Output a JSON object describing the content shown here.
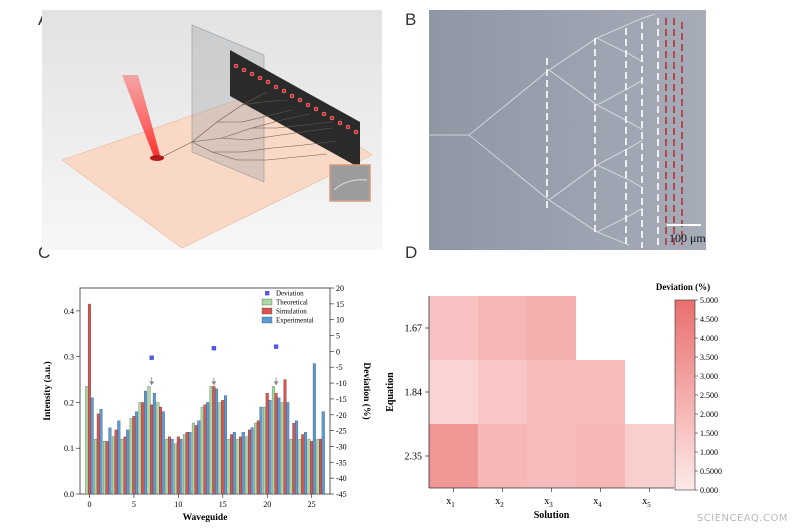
{
  "panels": {
    "a": "A",
    "b": "B",
    "c": "C",
    "d": "D"
  },
  "scale_bar": "100 μm",
  "watermark": "SCIENCEAQ.COM",
  "colors": {
    "theoretical": "#a9d8a0",
    "simulation": "#d9534f",
    "experimental": "#5b9bd5",
    "deviation": "#5656e6",
    "heat_low": "#fdeae8",
    "heat_high": "#ea6e6e"
  },
  "chart_data": [
    {
      "type": "bar",
      "xlabel": "Waveguide",
      "ylabel": "Intensity (a.u.)",
      "y2label": "Deviation (%)",
      "x": [
        0,
        1,
        2,
        3,
        4,
        5,
        6,
        7,
        8,
        9,
        10,
        11,
        12,
        13,
        14,
        15,
        16,
        17,
        18,
        19,
        20,
        21,
        22,
        23,
        24,
        25,
        26
      ],
      "xticks": [
        "0",
        "5",
        "10",
        "15",
        "20",
        "25"
      ],
      "ylim": [
        0,
        0.45
      ],
      "yticks": [
        "0.0",
        "0.1",
        "0.2",
        "0.3",
        "0.4"
      ],
      "y2lim": [
        -45,
        20
      ],
      "y2ticks": [
        "20",
        "15",
        "10",
        "5",
        "0",
        "-5",
        "-10",
        "-15",
        "-20",
        "-25",
        "-30",
        "-35",
        "-40",
        "-45"
      ],
      "legend_position": "top-right",
      "series": [
        {
          "name": "Theoretical",
          "values": [
            0.235,
            0.12,
            0.115,
            0.125,
            0.12,
            0.165,
            0.2,
            0.235,
            0.2,
            0.12,
            0.11,
            0.13,
            0.155,
            0.19,
            0.235,
            0.2,
            0.12,
            0.12,
            0.125,
            0.155,
            0.19,
            0.235,
            0.2,
            0.12,
            0.12,
            0.12,
            0.12
          ]
        },
        {
          "name": "Simulation",
          "values": [
            0.415,
            0.175,
            0.115,
            0.14,
            0.125,
            0.17,
            0.2,
            0.195,
            0.19,
            0.125,
            0.125,
            0.135,
            0.15,
            0.195,
            0.235,
            0.205,
            0.13,
            0.125,
            0.14,
            0.16,
            0.22,
            0.22,
            0.25,
            0.155,
            0.13,
            0.115,
            0.12
          ]
        },
        {
          "name": "Experimental",
          "values": [
            0.21,
            0.185,
            0.145,
            0.16,
            0.14,
            0.18,
            0.225,
            0.22,
            0.18,
            0.12,
            0.12,
            0.135,
            0.16,
            0.2,
            0.23,
            0.215,
            0.135,
            0.135,
            0.145,
            0.19,
            0.205,
            0.21,
            0.2,
            0.16,
            0.135,
            0.285,
            0.18
          ]
        },
        {
          "name": "Deviation",
          "axis": "right",
          "x": [
            7,
            14,
            21
          ],
          "values": [
            -2,
            1,
            1.5
          ]
        }
      ],
      "annotations": [
        {
          "x": 7,
          "arrow_from": 0.255,
          "arrow_to": 0.235
        },
        {
          "x": 14,
          "arrow_from": 0.255,
          "arrow_to": 0.235
        },
        {
          "x": 21,
          "arrow_from": 0.255,
          "arrow_to": 0.235
        }
      ]
    },
    {
      "type": "heatmap",
      "xlabel": "Solution",
      "ylabel": "Equation",
      "rows": [
        "1.67",
        "1.84",
        "2.35"
      ],
      "cols": [
        {
          "base": "x",
          "sub": "1"
        },
        {
          "base": "x",
          "sub": "2"
        },
        {
          "base": "x",
          "sub": "3"
        },
        {
          "base": "x",
          "sub": "4"
        },
        {
          "base": "x",
          "sub": "5"
        }
      ],
      "values": [
        [
          1.6,
          2.1,
          2.4,
          null,
          null
        ],
        [
          0.9,
          1.4,
          1.9,
          1.9,
          null
        ],
        [
          3.4,
          2.0,
          1.9,
          2.0,
          1.1
        ]
      ],
      "colorbar": {
        "label": "Deviation (%)",
        "range": [
          0,
          5
        ],
        "ticks": [
          "5.000",
          "4.500",
          "4.000",
          "3.500",
          "3.000",
          "2.500",
          "2.000",
          "1.500",
          "1.000",
          "0.5000",
          "0.000"
        ]
      }
    }
  ]
}
